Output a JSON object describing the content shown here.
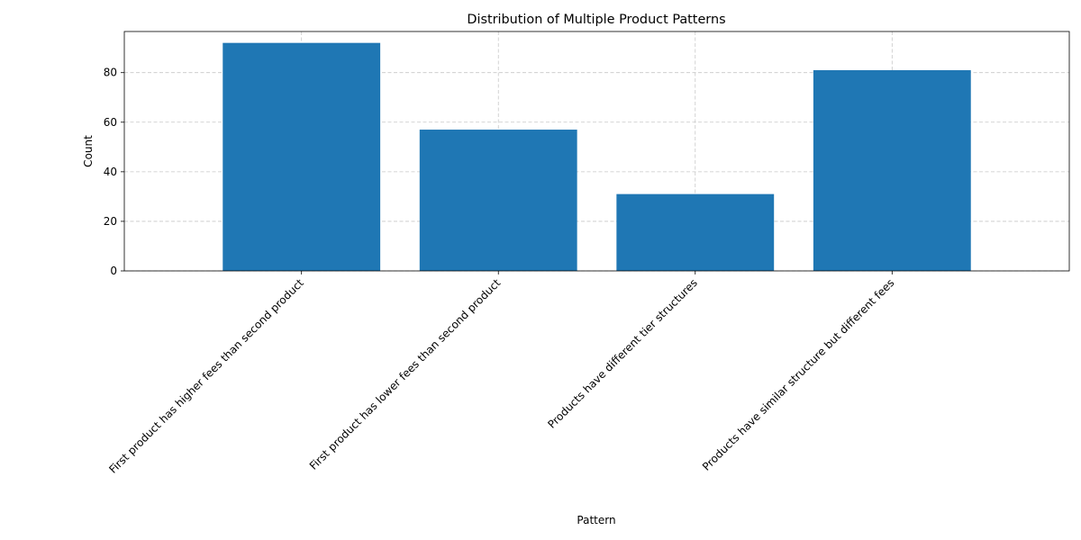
{
  "chart_data": {
    "type": "bar",
    "title": "Distribution of Multiple Product Patterns",
    "xlabel": "Pattern",
    "ylabel": "Count",
    "categories": [
      "First product has higher fees than second product",
      "First product has lower fees than second product",
      "Products have different tier structures",
      "Products have similar structure but different fees"
    ],
    "values": [
      92,
      57,
      31,
      81
    ],
    "ylim": [
      0,
      96.6
    ],
    "yticks": [
      0,
      20,
      40,
      60,
      80
    ],
    "grid": true,
    "bar_color": "#1f77b4"
  }
}
